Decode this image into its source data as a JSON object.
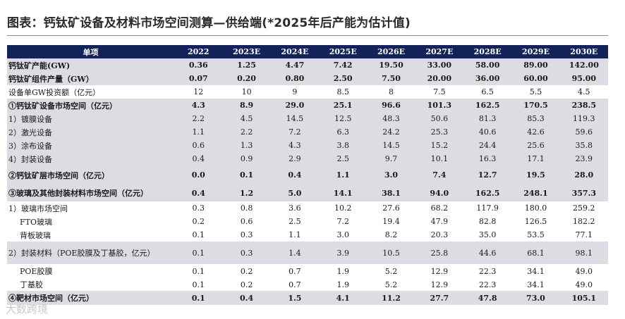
{
  "title": "图表：钙钛矿设备及材料市场空间测算—供给端(*2025年后产能为估计值)",
  "header": [
    "单项",
    "2022",
    "2023E",
    "2024E",
    "2025E",
    "2026E",
    "2027E",
    "2028E",
    "2029E",
    "2030E"
  ],
  "rows": [
    {
      "label": "钙钛矿产能(GW)",
      "values": [
        "0.36",
        "1.25",
        "4.47",
        "7.42",
        "19.50",
        "33.00",
        "58.00",
        "89.00",
        "142.00"
      ]
    },
    {
      "label": "钙钛矿组件产量（GW）",
      "values": [
        "0.07",
        "0.20",
        "0.80",
        "2.50",
        "7.50",
        "20.00",
        "36.00",
        "60.00",
        "95.00"
      ]
    },
    {
      "label": "设备单GW投资额（亿元）",
      "values": [
        "12",
        "10",
        "9",
        "8.5",
        "8",
        "7.5",
        "6.5",
        "5.5",
        "4.5"
      ]
    },
    {
      "label": "①钙钛矿设备市场空间（亿元）",
      "values": [
        "4.3",
        "8.9",
        "29.0",
        "25.1",
        "96.6",
        "101.3",
        "162.5",
        "170.5",
        "238.5"
      ]
    },
    {
      "label": "1）镀膜设备",
      "values": [
        "2.2",
        "4.5",
        "14.5",
        "12.5",
        "48.3",
        "50.6",
        "81.3",
        "85.3",
        "119.3"
      ]
    },
    {
      "label": "2）激光设备",
      "values": [
        "1.1",
        "2.2",
        "7.2",
        "6.3",
        "24.2",
        "25.3",
        "40.6",
        "42.6",
        "59.6"
      ]
    },
    {
      "label": "3）涂布设备",
      "values": [
        "0.6",
        "1.3",
        "4.3",
        "3.8",
        "14.5",
        "15.2",
        "24.4",
        "25.6",
        "35.8"
      ]
    },
    {
      "label": "4）封装设备",
      "values": [
        "0.4",
        "0.9",
        "2.9",
        "2.5",
        "9.7",
        "10.1",
        "16.3",
        "17.1",
        "23.9"
      ]
    },
    {
      "label": "②钙钛矿层市场空间（亿元）",
      "values": [
        "0.0",
        "0.1",
        "0.4",
        "1.1",
        "3.0",
        "7.4",
        "12.7",
        "19.5",
        "28.0"
      ]
    },
    {
      "label": "③玻璃及其他封装材料市场空间（亿元）",
      "values": [
        "0.4",
        "1.2",
        "5.0",
        "14.1",
        "38.1",
        "94.0",
        "162.5",
        "248.1",
        "357.3"
      ]
    },
    {
      "label": "1）玻璃市场空间",
      "values": [
        "0.3",
        "0.8",
        "3.6",
        "10.2",
        "27.6",
        "68.2",
        "117.9",
        "180.0",
        "259.2"
      ]
    },
    {
      "label": "FTO玻璃",
      "values": [
        "0.2",
        "0.6",
        "2.5",
        "7.2",
        "19.4",
        "47.9",
        "82.8",
        "126.5",
        "182.2"
      ]
    },
    {
      "label": "背板玻璃",
      "values": [
        "0.1",
        "0.3",
        "1.1",
        "3.0",
        "8.2",
        "20.3",
        "35.0",
        "53.5",
        "77.1"
      ]
    },
    {
      "label": "2）封装材料（POE胶膜及丁基胶，亿元）",
      "values": [
        "0.1",
        "0.3",
        "1.4",
        "3.9",
        "10.5",
        "25.8",
        "44.6",
        "68.1",
        "98.1"
      ]
    },
    {
      "label": "POE胶膜",
      "values": [
        "0.1",
        "0.2",
        "0.7",
        "1.9",
        "5.2",
        "12.9",
        "22.3",
        "34.1",
        "49.0"
      ]
    },
    {
      "label": "丁基胶",
      "values": [
        "0.1",
        "0.2",
        "0.7",
        "1.9",
        "5.2",
        "12.9",
        "22.3",
        "34.1",
        "49.0"
      ]
    },
    {
      "label": "④靶材市场空间（亿元）",
      "values": [
        "0.1",
        "0.4",
        "1.5",
        "4.1",
        "11.2",
        "27.7",
        "47.8",
        "73.0",
        "105.1"
      ]
    }
  ],
  "watermark": "大数跨境",
  "colors": {
    "header_bg": "#13235a",
    "shade_bg": "#dcdde3",
    "title_color": "#2b2b2b"
  }
}
